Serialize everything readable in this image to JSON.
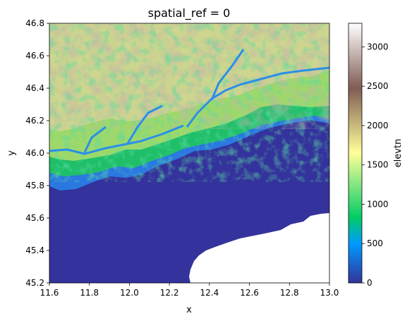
{
  "chart_data": {
    "type": "heatmap",
    "title": "spatial_ref = 0",
    "xlabel": "x",
    "ylabel": "y",
    "xlim": [
      11.6,
      13.0
    ],
    "ylim": [
      45.2,
      46.8
    ],
    "xticks": [
      "11.6",
      "11.8",
      "12.0",
      "12.2",
      "12.4",
      "12.6",
      "12.8",
      "13.0"
    ],
    "yticks": [
      "45.2",
      "45.4",
      "45.6",
      "45.8",
      "46.0",
      "46.2",
      "46.4",
      "46.6",
      "46.8"
    ],
    "colorbar": {
      "label": "elevtn",
      "colormap": "terrain",
      "range": [
        0,
        3300
      ],
      "ticks": [
        "0",
        "500",
        "1000",
        "1500",
        "2000",
        "2500",
        "3000"
      ]
    },
    "nodata_color": "#ffffff",
    "grid": false
  }
}
